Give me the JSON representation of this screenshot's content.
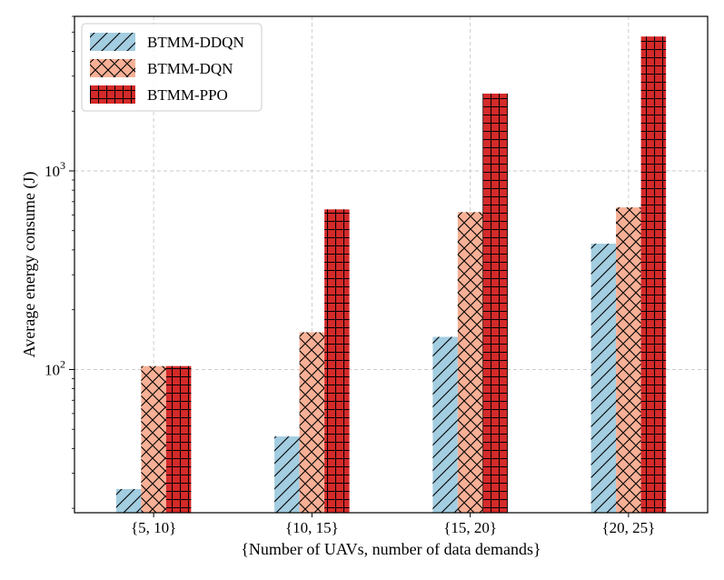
{
  "chart_data": {
    "type": "bar",
    "title": "",
    "xlabel": "{Number of UAVs, number of data demands}",
    "ylabel": "Average energy consume (J)",
    "yscale": "log",
    "ylim": [
      19,
      6000
    ],
    "grid": true,
    "legend_position": "top-left",
    "categories": [
      "{5, 10}",
      "{10, 15}",
      "{15, 20}",
      "{20, 25}"
    ],
    "y_ticks": [
      {
        "value": 100,
        "base": "10",
        "exp": "2"
      },
      {
        "value": 1000,
        "base": "10",
        "exp": "3"
      }
    ],
    "series": [
      {
        "name": "BTMM-DDQN",
        "values": [
          25,
          46,
          146,
          430
        ],
        "color": "#a3cde0",
        "hatch": "diagonal"
      },
      {
        "name": "BTMM-DQN",
        "values": [
          104,
          154,
          620,
          655
        ],
        "color": "#f7b096",
        "hatch": "cross-diagonal"
      },
      {
        "name": "BTMM-PPO",
        "values": [
          104,
          640,
          2450,
          4750
        ],
        "color": "#d42a2a",
        "hatch": "grid"
      }
    ]
  }
}
